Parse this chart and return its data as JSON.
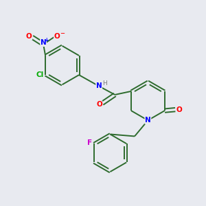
{
  "background_color": "#e8eaf0",
  "bond_color": "#2d6b2d",
  "colors": {
    "N": "#0000ff",
    "O": "#ff0000",
    "Cl": "#00aa00",
    "H": "#7a7a7a",
    "F": "#cc00cc",
    "C": "#2d6b2d"
  },
  "lw": 1.4
}
